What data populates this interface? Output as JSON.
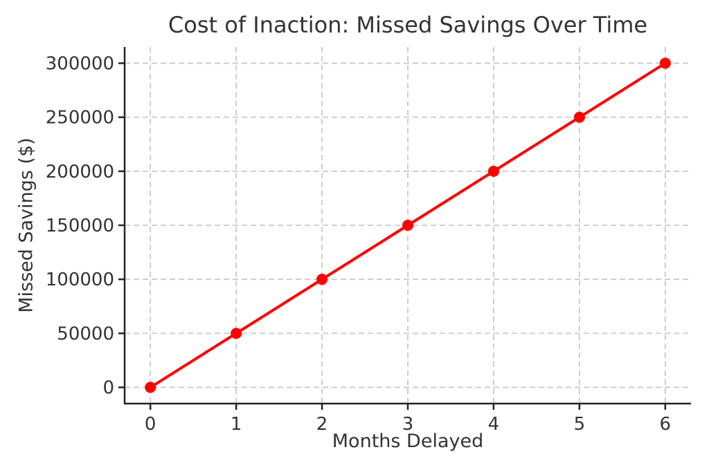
{
  "chart_data": {
    "type": "line",
    "title": "Cost of Inaction: Missed Savings Over Time",
    "xlabel": "Months Delayed",
    "ylabel": "Missed Savings ($)",
    "x": [
      0,
      1,
      2,
      3,
      4,
      5,
      6
    ],
    "series": [
      {
        "name": "Missed Savings",
        "values": [
          0,
          50000,
          100000,
          150000,
          200000,
          250000,
          300000
        ],
        "color": "#ff0000",
        "marker": "circle",
        "line_width": 4,
        "marker_radius": 8
      }
    ],
    "xlim": [
      -0.3,
      6.3
    ],
    "ylim": [
      -15000,
      315000
    ],
    "x_ticks": [
      0,
      1,
      2,
      3,
      4,
      5,
      6
    ],
    "y_ticks": [
      0,
      50000,
      100000,
      150000,
      200000,
      250000,
      300000
    ],
    "grid": true,
    "grid_style": "dashed",
    "legend": "none",
    "colors": {
      "line": "#ff0000",
      "grid": "#c9c9c9",
      "spine": "#222222",
      "text": "#333333",
      "background": "#ffffff"
    }
  }
}
